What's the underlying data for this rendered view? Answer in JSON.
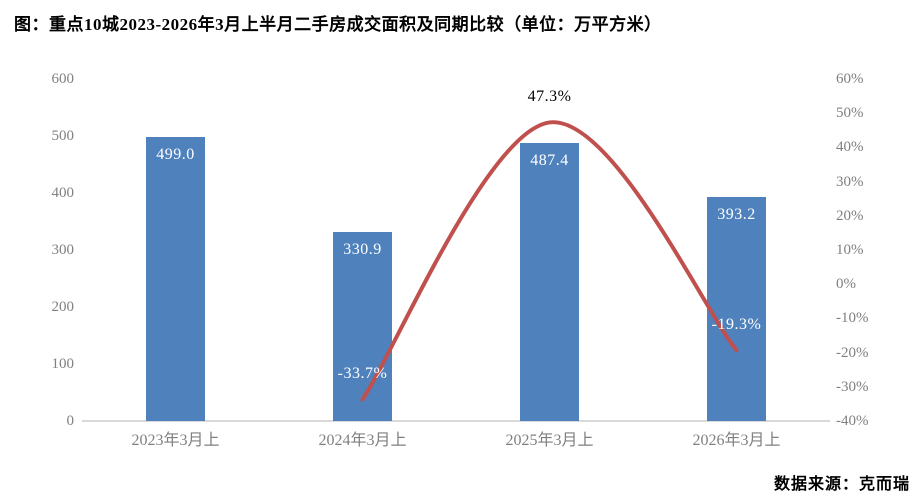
{
  "page": {
    "title": "图：重点10城2023-2026年3月上半月二手房成交面积及同期比较（单位：万平方米）",
    "source": "数据来源：克而瑞"
  },
  "chart_data": {
    "type": "bar",
    "subtype": "combo-bar-smooth-line",
    "title": "重点10城2023-2026年3月上半月二手房成交面积及同期比较",
    "unit": "万平方米",
    "categories": [
      "2023年3月上",
      "2024年3月上",
      "2025年3月上",
      "2026年3月上"
    ],
    "series": [
      {
        "name": "二手房成交面积",
        "type": "bar",
        "axis": "left",
        "color": "#4f81bd",
        "values": [
          499.0,
          330.9,
          487.4,
          393.2
        ],
        "labels": [
          "499.0",
          "330.9",
          "487.4",
          "393.2"
        ],
        "label_color": "#ffffff"
      },
      {
        "name": "同期比较",
        "type": "line",
        "axis": "right",
        "color": "#c0504d",
        "smooth": true,
        "values": [
          null,
          -33.7,
          47.3,
          -19.3
        ],
        "labels": [
          null,
          "-33.7%",
          "47.3%",
          "-19.3%"
        ],
        "label_colors": [
          null,
          "#ffffff",
          "#000000",
          "#ffffff"
        ]
      }
    ],
    "left_axis": {
      "min": 0,
      "max": 600,
      "step": 100,
      "ticks": [
        "600",
        "500",
        "400",
        "300",
        "200",
        "100",
        "0"
      ]
    },
    "right_axis": {
      "min": -40,
      "max": 60,
      "step": 10,
      "ticks": [
        "60%",
        "50%",
        "40%",
        "30%",
        "20%",
        "10%",
        "0%",
        "-10%",
        "-20%",
        "-30%",
        "-40%"
      ]
    },
    "grid": false,
    "legend_position": "none",
    "colors": {
      "axis_text": "#808080",
      "axis_line": "#d9d9d9",
      "title": "#000000",
      "background": "#ffffff"
    }
  }
}
